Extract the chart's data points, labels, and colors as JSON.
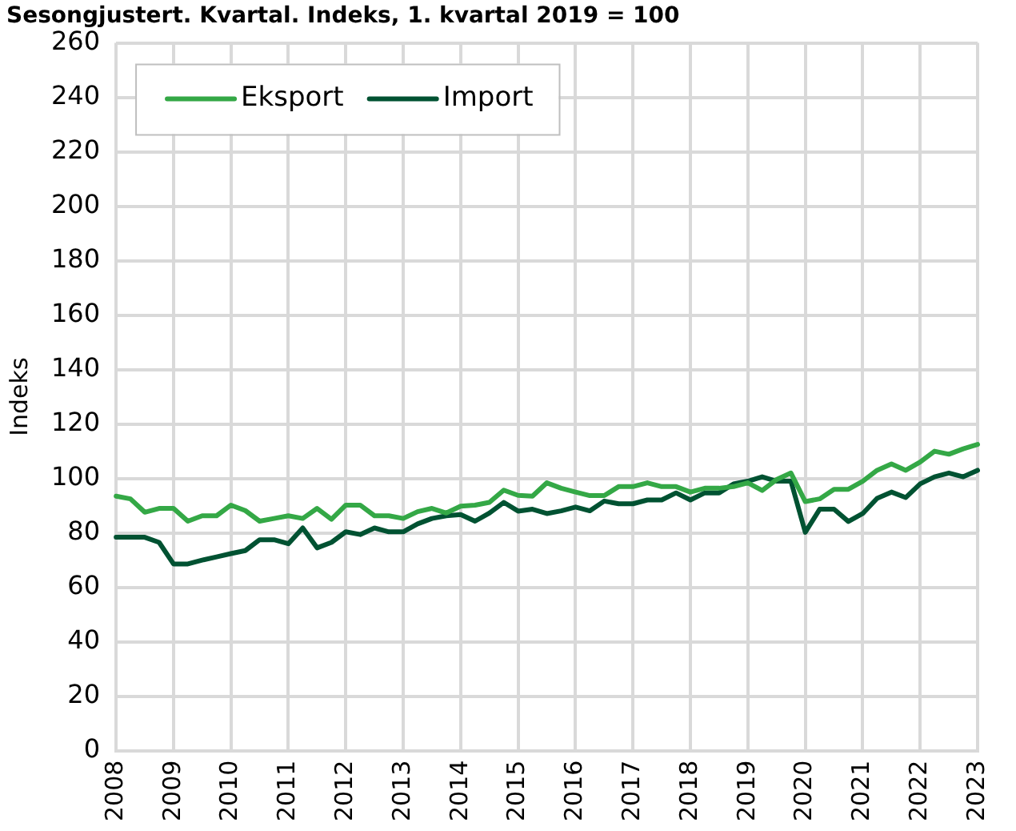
{
  "chart_data": {
    "type": "line",
    "title": "Sesongjustert. Kvartal. Indeks, 1. kvartal 2019 = 100",
    "ylabel": "Indeks",
    "categories": [
      "2008",
      null,
      null,
      null,
      "2009",
      null,
      null,
      null,
      "2010",
      null,
      null,
      null,
      "2011",
      null,
      null,
      null,
      "2012",
      null,
      null,
      null,
      "2013",
      null,
      null,
      null,
      "2014",
      null,
      null,
      null,
      "2015",
      null,
      null,
      null,
      "2016",
      null,
      null,
      null,
      "2017",
      null,
      null,
      null,
      "2018",
      null,
      null,
      null,
      "2019",
      null,
      null,
      null,
      "2020",
      null,
      null,
      null,
      "2021",
      null,
      null,
      null,
      "2022",
      null,
      null,
      null,
      "2023"
    ],
    "series": [
      {
        "name": "Eksport",
        "color": "#34a846",
        "values": [
          93.5,
          92.5,
          87.6,
          89,
          89,
          84.3,
          86.3,
          86.3,
          90.2,
          88.2,
          84.3,
          85.3,
          86.3,
          85.3,
          89,
          85,
          90.2,
          90.2,
          86.3,
          86.3,
          85.3,
          87.8,
          89,
          87.3,
          89.8,
          90.2,
          91.2,
          95.7,
          93.8,
          93.5,
          98.4,
          96.4,
          95,
          93.7,
          93.7,
          97,
          97,
          98.4,
          97,
          97,
          95,
          96.4,
          96.4,
          97,
          98.4,
          95.6,
          99.6,
          102,
          91.5,
          92.5,
          96,
          96,
          99,
          103,
          105.3,
          103,
          106,
          110,
          108.9,
          110.9,
          112.5
        ]
      },
      {
        "name": "Import",
        "color": "#005232",
        "values": [
          78.4,
          78.4,
          78.4,
          76.5,
          68.6,
          68.6,
          70,
          71.2,
          72.4,
          73.5,
          77.5,
          77.5,
          76,
          81.8,
          74.5,
          76.5,
          80.4,
          79.4,
          81.8,
          80.4,
          80.4,
          83.3,
          85.3,
          86.3,
          86.7,
          84.3,
          87.3,
          91.2,
          88,
          88.7,
          87.1,
          88.1,
          89.5,
          88.1,
          91.7,
          90.7,
          90.7,
          92.1,
          92.1,
          94.7,
          92.1,
          94.7,
          94.7,
          98,
          99,
          100.6,
          99,
          99,
          80.2,
          88.7,
          88.7,
          84.2,
          87.1,
          92.7,
          95,
          93,
          98,
          100.6,
          102,
          100.6,
          103
        ]
      }
    ],
    "ylim": [
      0,
      260
    ],
    "yticks": [
      0,
      20,
      40,
      60,
      80,
      100,
      120,
      140,
      160,
      180,
      200,
      220,
      240,
      260
    ],
    "grid": true,
    "legend": "top left",
    "marker": "none",
    "line_style": "solid"
  }
}
